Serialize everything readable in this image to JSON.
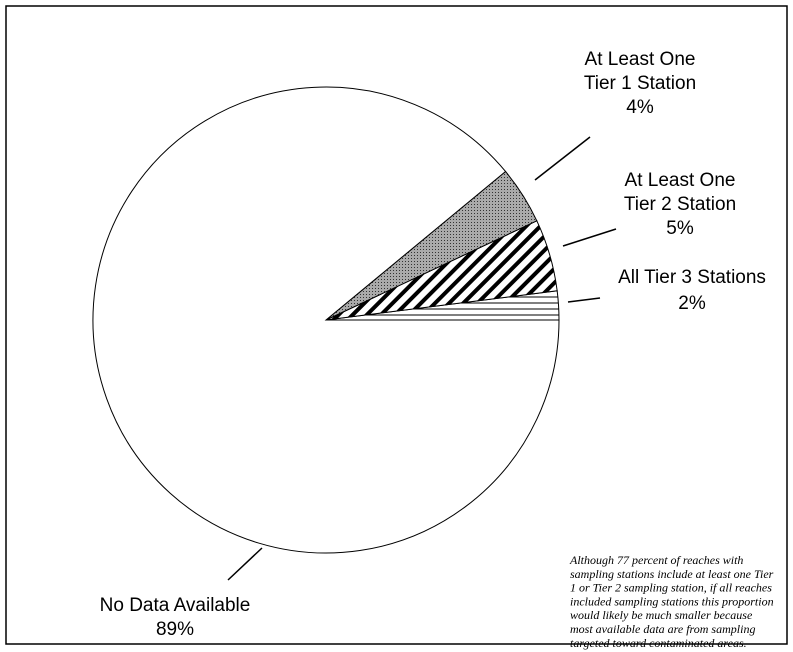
{
  "chart_data": {
    "type": "pie",
    "categories": [
      "All Tier 3 Stations",
      "At Least One\nTier 2 Station",
      "At Least One\nTier 1 Station",
      "No Data Available"
    ],
    "values": [
      2,
      5,
      4,
      89
    ],
    "value_labels": [
      "2%",
      "5%",
      "4%",
      "89%"
    ],
    "patterns": [
      "horizontal",
      "diagonal",
      "stipple",
      "none"
    ],
    "start_angle": 0,
    "direction": "counterclockwise",
    "annotation": [
      "Although 77 percent of reaches with",
      "sampling stations include at least one Tier",
      "1 or Tier 2 sampling station, if all reaches",
      "included sampling stations this proportion",
      "would likely be much smaller because",
      "most available data are from sampling",
      "targeted toward contaminated areas."
    ]
  }
}
